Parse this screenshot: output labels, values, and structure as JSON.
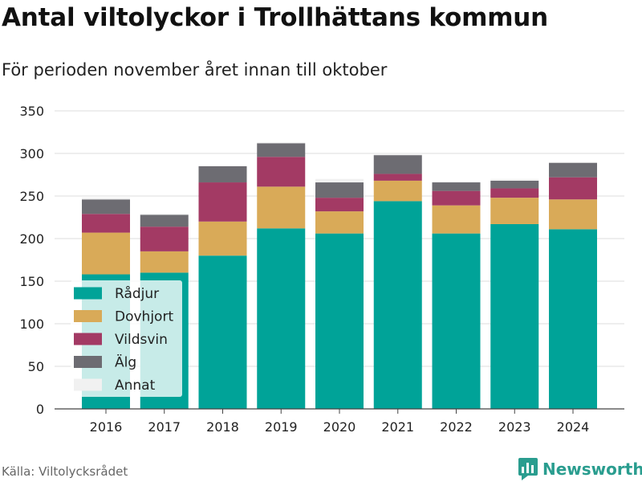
{
  "header": {
    "title": "Antal viltolyckor i Trollhättans kommun",
    "subtitle": "För perioden november året innan till oktober"
  },
  "footer": {
    "source": "Källa: Viltolycksrådet",
    "brand": "Newsworthy",
    "brand_icon": "bar-chart-logo-icon",
    "brand_color": "#2a9d8f"
  },
  "chart_data": {
    "type": "bar",
    "stacked": true,
    "categories": [
      "2016",
      "2017",
      "2018",
      "2019",
      "2020",
      "2021",
      "2022",
      "2023",
      "2024"
    ],
    "series": [
      {
        "name": "Rådjur",
        "color": "#00a398",
        "values": [
          158,
          160,
          180,
          212,
          206,
          244,
          206,
          217,
          211
        ]
      },
      {
        "name": "Dovhjort",
        "color": "#d9aa58",
        "values": [
          49,
          25,
          40,
          49,
          26,
          24,
          33,
          31,
          35
        ]
      },
      {
        "name": "Vildsvin",
        "color": "#a33a64",
        "values": [
          22,
          29,
          46,
          35,
          16,
          8,
          17,
          11,
          26
        ]
      },
      {
        "name": "Älg",
        "color": "#6d6c72",
        "values": [
          17,
          14,
          19,
          16,
          18,
          22,
          10,
          9,
          17
        ]
      },
      {
        "name": "Annat",
        "color": "#f1f1f1",
        "values": [
          2,
          1,
          1,
          1,
          4,
          2,
          1,
          2,
          1
        ]
      }
    ],
    "ylim": [
      0,
      350
    ],
    "yticks": [
      0,
      50,
      100,
      150,
      200,
      250,
      300,
      350
    ],
    "grid": true,
    "legend_position": "bottom-left inside"
  }
}
